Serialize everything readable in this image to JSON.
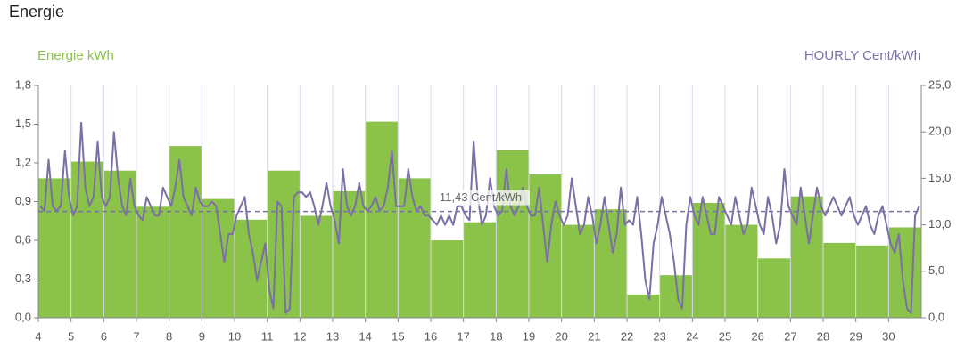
{
  "chart_data": {
    "type": "bar",
    "title": "Energie",
    "y_label": "Energie kWh",
    "y2_label": "HOURLY Cent/kWh",
    "categories": [
      "4",
      "5",
      "6",
      "7",
      "8",
      "9",
      "10",
      "11",
      "12",
      "13",
      "14",
      "15",
      "16",
      "17",
      "18",
      "19",
      "20",
      "21",
      "22",
      "23",
      "24",
      "25",
      "26",
      "27",
      "28",
      "29",
      "30"
    ],
    "values": [
      1.08,
      1.21,
      1.14,
      0.86,
      1.33,
      0.92,
      0.76,
      1.14,
      0.79,
      0.98,
      1.52,
      1.08,
      0.6,
      0.74,
      1.3,
      1.11,
      0.72,
      0.84,
      0.18,
      0.33,
      0.89,
      0.72,
      0.46,
      0.94,
      0.58,
      0.56,
      0.7
    ],
    "color": "#8bc34a",
    "ylim": [
      0,
      1.8
    ],
    "yticks": [
      {
        "value": 0,
        "label": "0,0"
      },
      {
        "value": 0.3,
        "label": "0,3"
      },
      {
        "value": 0.6,
        "label": "0,6"
      },
      {
        "value": 0.9,
        "label": "0,9"
      },
      {
        "value": 1.2,
        "label": "1,2"
      },
      {
        "value": 1.5,
        "label": "1,5"
      },
      {
        "value": 1.8,
        "label": "1,8"
      }
    ],
    "y2lim": [
      0,
      25
    ],
    "y2ticks": [
      {
        "value": 0,
        "label": "0,0"
      },
      {
        "value": 5,
        "label": "5,0"
      },
      {
        "value": 10,
        "label": "10,0"
      },
      {
        "value": 15,
        "label": "15,0"
      },
      {
        "value": 20,
        "label": "20,0"
      },
      {
        "value": 25,
        "label": "25,0"
      }
    ],
    "line": {
      "axis": "y2",
      "color": "#7b6fa6",
      "values": [
        12,
        11.5,
        17,
        12,
        11.5,
        12,
        18,
        13,
        11,
        12,
        21,
        14,
        12,
        13,
        19,
        13,
        12,
        13,
        20,
        15,
        12,
        11,
        15,
        12,
        11,
        10.5,
        13,
        12,
        11,
        11,
        14,
        13,
        12,
        14,
        17,
        13,
        12,
        11,
        14,
        12.5,
        12,
        12,
        12.5,
        12,
        9,
        6,
        9,
        9,
        11,
        12,
        13,
        9,
        7,
        4,
        6,
        8,
        3,
        1,
        12.5,
        12,
        0.5,
        1,
        13,
        13.5,
        13.5,
        13,
        13.5,
        12,
        10,
        12,
        14.5,
        12,
        10.5,
        8,
        16,
        12,
        11,
        12,
        14.5,
        12,
        11.5,
        12,
        13,
        11.5,
        12,
        14,
        18,
        12,
        12,
        12,
        16,
        13,
        11.5,
        12,
        11,
        11,
        10.5,
        10,
        11,
        10,
        11,
        10,
        12,
        12,
        11,
        10.5,
        19,
        13,
        10,
        11,
        15,
        12,
        11,
        11.5,
        16,
        12,
        11,
        12,
        14,
        12,
        11,
        11,
        14,
        10,
        6,
        10,
        12.5,
        11,
        10,
        11,
        15,
        12,
        9,
        10,
        13,
        11,
        8,
        10,
        13,
        10,
        7,
        9,
        14,
        10,
        10.5,
        10,
        13,
        9,
        4,
        2,
        8,
        10,
        13,
        11,
        9,
        6,
        2,
        1,
        10,
        13,
        11,
        10,
        13,
        11,
        9,
        9,
        13,
        12,
        11,
        10,
        13,
        11,
        9,
        10,
        14,
        12,
        10,
        9,
        13,
        11,
        8,
        10,
        16,
        12,
        11,
        10,
        14,
        11,
        8,
        11,
        14,
        12,
        11,
        12,
        13,
        12,
        11,
        12,
        13,
        11,
        10,
        11,
        12,
        10,
        9,
        11,
        12,
        10,
        8,
        7,
        9,
        4,
        1,
        0.5,
        11,
        12
      ]
    },
    "avg": {
      "value": 11.43,
      "label": "11,43 Cent/kWh"
    },
    "grid": true
  }
}
